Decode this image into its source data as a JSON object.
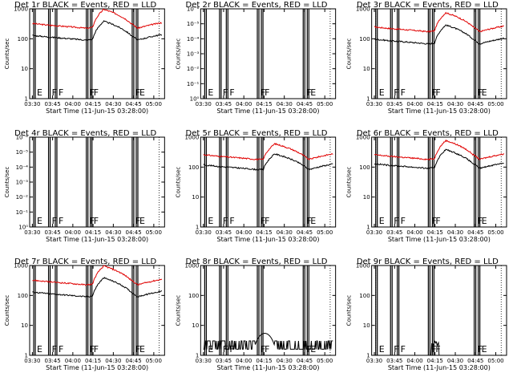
{
  "chart_data": [
    {
      "type": "line",
      "title": "Det 1r BLACK = Events, RED = LLD",
      "xlabel": "Start Time (11-Jun-15 03:28:00)",
      "ylabel": "Counts/sec",
      "yscale": "log",
      "ylim": [
        1,
        1000
      ],
      "y_tick_labels": [
        "1",
        "10",
        "100",
        "1000"
      ],
      "x_tick_labels": [
        "03:30",
        "03:45",
        "04:00",
        "04:15",
        "04:30",
        "04:45",
        "05:00"
      ],
      "xlim": [
        "03:28",
        "05:08"
      ],
      "flags": [
        {
          "t": "03:31",
          "label": "E"
        },
        {
          "t": "03:42",
          "label": "F"
        },
        {
          "t": "03:47",
          "label": "F"
        },
        {
          "t": "04:10",
          "label": "F"
        },
        {
          "t": "04:13",
          "label": "F"
        },
        {
          "t": "04:44",
          "label": "F"
        },
        {
          "t": "04:47",
          "label": "E"
        }
      ],
      "series": [
        {
          "name": "LLD",
          "color": "#e00000",
          "shape": "rise",
          "base": 300
        },
        {
          "name": "Events",
          "color": "#000000",
          "shape": "rise",
          "base": 120
        }
      ]
    },
    {
      "type": "line",
      "title": "Det 2r BLACK = Events, RED = LLD",
      "xlabel": "Start Time (11-Jun-15 03:28:00)",
      "ylabel": "Counts/sec",
      "yscale": "log",
      "y_tick_labels": [
        "10⁰",
        "10⁻¹",
        "10⁻²",
        "10⁻³",
        "10⁻⁴",
        "10⁻⁵",
        "10⁻⁶"
      ],
      "x_tick_labels": [
        "03:30",
        "03:45",
        "04:00",
        "04:15",
        "04:30",
        "04:45",
        "05:00"
      ],
      "xlim": [
        "03:28",
        "05:08"
      ],
      "flags": [
        {
          "t": "03:31",
          "label": "E"
        },
        {
          "t": "03:42",
          "label": "F"
        },
        {
          "t": "03:47",
          "label": "F"
        },
        {
          "t": "04:10",
          "label": "F"
        },
        {
          "t": "04:13",
          "label": "F"
        },
        {
          "t": "04:44",
          "label": "F"
        },
        {
          "t": "04:47",
          "label": "E"
        }
      ],
      "series": []
    },
    {
      "type": "line",
      "title": "Det 3r BLACK = Events, RED = LLD",
      "xlabel": "Start Time (11-Jun-15 03:28:00)",
      "ylabel": "Counts/sec",
      "yscale": "log",
      "ylim": [
        1,
        1000
      ],
      "y_tick_labels": [
        "1",
        "10",
        "100",
        "1000"
      ],
      "x_tick_labels": [
        "03:30",
        "03:45",
        "04:00",
        "04:15",
        "04:30",
        "04:45",
        "05:00"
      ],
      "xlim": [
        "03:28",
        "05:08"
      ],
      "flags": [
        {
          "t": "03:31",
          "label": "E"
        },
        {
          "t": "03:42",
          "label": "F"
        },
        {
          "t": "03:47",
          "label": "F"
        },
        {
          "t": "04:10",
          "label": "F"
        },
        {
          "t": "04:13",
          "label": "F"
        },
        {
          "t": "04:44",
          "label": "F"
        },
        {
          "t": "04:47",
          "label": "E"
        }
      ],
      "series": [
        {
          "name": "LLD",
          "color": "#e00000",
          "shape": "rise",
          "base": 230
        },
        {
          "name": "Events",
          "color": "#000000",
          "shape": "rise",
          "base": 90
        }
      ]
    },
    {
      "type": "line",
      "title": "Det 4r BLACK = Events, RED = LLD",
      "xlabel": "Start Time (11-Jun-15 03:28:00)",
      "ylabel": "Counts/sec",
      "yscale": "log",
      "y_tick_labels": [
        "10⁰",
        "10⁻¹",
        "10⁻²",
        "10⁻³",
        "10⁻⁴",
        "10⁻⁵",
        "10⁻⁶"
      ],
      "x_tick_labels": [
        "03:30",
        "03:45",
        "04:00",
        "04:15",
        "04:30",
        "04:45",
        "05:00"
      ],
      "xlim": [
        "03:28",
        "05:08"
      ],
      "flags": [
        {
          "t": "03:31",
          "label": "E"
        },
        {
          "t": "03:42",
          "label": "F"
        },
        {
          "t": "03:47",
          "label": "F"
        },
        {
          "t": "04:10",
          "label": "F"
        },
        {
          "t": "04:13",
          "label": "F"
        },
        {
          "t": "04:44",
          "label": "F"
        },
        {
          "t": "04:47",
          "label": "E"
        }
      ],
      "series": []
    },
    {
      "type": "line",
      "title": "Det 5r BLACK = Events, RED = LLD",
      "xlabel": "Start Time (11-Jun-15 03:28:00)",
      "ylabel": "Counts/sec",
      "yscale": "log",
      "ylim": [
        1,
        1000
      ],
      "y_tick_labels": [
        "1",
        "10",
        "100",
        "1000"
      ],
      "x_tick_labels": [
        "03:30",
        "03:45",
        "04:00",
        "04:15",
        "04:30",
        "04:45",
        "05:00"
      ],
      "xlim": [
        "03:28",
        "05:08"
      ],
      "flags": [
        {
          "t": "03:31",
          "label": "E"
        },
        {
          "t": "03:42",
          "label": "F"
        },
        {
          "t": "03:47",
          "label": "F"
        },
        {
          "t": "04:10",
          "label": "F"
        },
        {
          "t": "04:13",
          "label": "F"
        },
        {
          "t": "04:44",
          "label": "F"
        },
        {
          "t": "04:47",
          "label": "E"
        }
      ],
      "series": [
        {
          "name": "LLD",
          "color": "#e00000",
          "shape": "peak",
          "base": 240
        },
        {
          "name": "Events",
          "color": "#000000",
          "shape": "peak",
          "base": 110
        }
      ]
    },
    {
      "type": "line",
      "title": "Det 6r BLACK = Events, RED = LLD",
      "xlabel": "Start Time (11-Jun-15 03:28:00)",
      "ylabel": "Counts/sec",
      "yscale": "log",
      "ylim": [
        1,
        1000
      ],
      "y_tick_labels": [
        "1",
        "10",
        "100",
        "1000"
      ],
      "x_tick_labels": [
        "03:30",
        "03:45",
        "04:00",
        "04:15",
        "04:30",
        "04:45",
        "05:00"
      ],
      "xlim": [
        "03:28",
        "05:08"
      ],
      "flags": [
        {
          "t": "03:31",
          "label": "E"
        },
        {
          "t": "03:42",
          "label": "F"
        },
        {
          "t": "03:47",
          "label": "F"
        },
        {
          "t": "04:10",
          "label": "F"
        },
        {
          "t": "04:13",
          "label": "F"
        },
        {
          "t": "04:44",
          "label": "F"
        },
        {
          "t": "04:47",
          "label": "E"
        }
      ],
      "series": [
        {
          "name": "LLD",
          "color": "#e00000",
          "shape": "rise",
          "base": 240
        },
        {
          "name": "Events",
          "color": "#000000",
          "shape": "rise",
          "base": 120
        }
      ]
    },
    {
      "type": "line",
      "title": "Det 7r BLACK = Events, RED = LLD",
      "xlabel": "Start Time (11-Jun-15 03:28:00)",
      "ylabel": "Counts/sec",
      "yscale": "log",
      "ylim": [
        1,
        1000
      ],
      "y_tick_labels": [
        "1",
        "10",
        "100",
        "1000"
      ],
      "x_tick_labels": [
        "03:30",
        "03:45",
        "04:00",
        "04:15",
        "04:30",
        "04:45",
        "05:00"
      ],
      "xlim": [
        "03:28",
        "05:08"
      ],
      "flags": [
        {
          "t": "03:31",
          "label": "E"
        },
        {
          "t": "03:42",
          "label": "F"
        },
        {
          "t": "03:47",
          "label": "F"
        },
        {
          "t": "04:10",
          "label": "F"
        },
        {
          "t": "04:13",
          "label": "F"
        },
        {
          "t": "04:44",
          "label": "F"
        },
        {
          "t": "04:47",
          "label": "E"
        }
      ],
      "series": [
        {
          "name": "LLD",
          "color": "#e00000",
          "shape": "rise",
          "base": 300
        },
        {
          "name": "Events",
          "color": "#000000",
          "shape": "rise",
          "base": 120
        }
      ]
    },
    {
      "type": "line",
      "title": "Det 8r BLACK = Events, RED = LLD",
      "xlabel": "Start Time (11-Jun-15 03:28:00)",
      "ylabel": "Counts/sec",
      "yscale": "log",
      "ylim": [
        1,
        1000
      ],
      "y_tick_labels": [
        "1",
        "10",
        "100",
        "1000"
      ],
      "x_tick_labels": [
        "03:30",
        "03:45",
        "04:00",
        "04:15",
        "04:30",
        "04:45",
        "05:00"
      ],
      "xlim": [
        "03:28",
        "05:08"
      ],
      "flags": [
        {
          "t": "03:31",
          "label": "E"
        },
        {
          "t": "03:42",
          "label": "F"
        },
        {
          "t": "03:47",
          "label": "F"
        },
        {
          "t": "04:10",
          "label": "F"
        },
        {
          "t": "04:13",
          "label": "F"
        },
        {
          "t": "04:44",
          "label": "F"
        },
        {
          "t": "04:47",
          "label": "E"
        }
      ],
      "series": [
        {
          "name": "Events",
          "color": "#000000",
          "shape": "noise",
          "base": 1.6
        }
      ]
    },
    {
      "type": "line",
      "title": "Det 9r BLACK = Events, RED = LLD",
      "xlabel": "Start Time (11-Jun-15 03:28:00)",
      "ylabel": "Counts/sec",
      "yscale": "log",
      "ylim": [
        1,
        1000
      ],
      "y_tick_labels": [
        "1",
        "10",
        "100",
        "1000"
      ],
      "x_tick_labels": [
        "03:30",
        "03:45",
        "04:00",
        "04:15",
        "04:30",
        "04:45",
        "05:00"
      ],
      "xlim": [
        "03:28",
        "05:08"
      ],
      "flags": [
        {
          "t": "03:31",
          "label": "E"
        },
        {
          "t": "03:42",
          "label": "F"
        },
        {
          "t": "03:47",
          "label": "F"
        },
        {
          "t": "04:10",
          "label": "F"
        },
        {
          "t": "04:13",
          "label": "F"
        },
        {
          "t": "04:44",
          "label": "F"
        },
        {
          "t": "04:47",
          "label": "E"
        }
      ],
      "series": [
        {
          "name": "Events",
          "color": "#000000",
          "shape": "sparse",
          "base": 1.5
        }
      ]
    }
  ]
}
